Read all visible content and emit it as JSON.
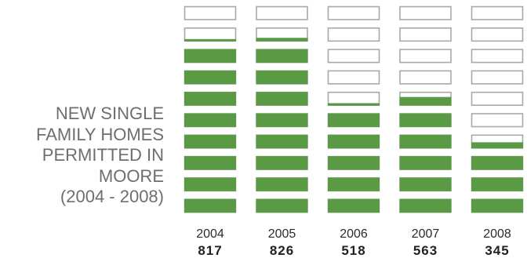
{
  "title_lines": [
    "NEW SINGLE",
    "FAMILY HOMES",
    "PERMITTED IN",
    "MOORE",
    "(2004 - 2008)"
  ],
  "colors": {
    "fill": "#5a9a45",
    "empty_border": "#a8a8a8",
    "empty_fill": "#ffffff"
  },
  "chart_data": {
    "type": "bar",
    "style": "pictorial stacked blocks (10 blocks per column, filled from bottom)",
    "title": "NEW SINGLE FAMILY HOMES PERMITTED IN MOORE (2004 - 2008)",
    "categories": [
      "2004",
      "2005",
      "2006",
      "2007",
      "2008"
    ],
    "values": [
      817,
      826,
      518,
      563,
      345
    ],
    "value_labels": [
      "817",
      "826",
      "518",
      "563",
      "345"
    ],
    "blocks_per_column": 10,
    "units_per_block": 100,
    "ylim": [
      0,
      1000
    ],
    "grid": false,
    "legend": "none"
  }
}
